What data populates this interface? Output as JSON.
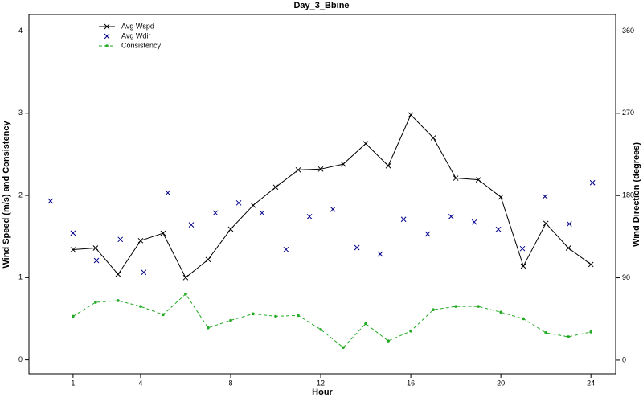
{
  "chart_data": {
    "type": "line",
    "title": "Day_3_Bbine",
    "x_label": "Hour",
    "y_label": "Wind Speed (m/s) and Consistency",
    "y2_label": "Wind Direction (degrees)",
    "xlim": [
      -0.96,
      25.1
    ],
    "xticks": [
      1,
      4,
      8,
      12,
      16,
      20,
      24
    ],
    "ylim": [
      -0.17,
      4.2
    ],
    "yticks": [
      0,
      1,
      2,
      3,
      4
    ],
    "y2lim": [
      -15,
      378
    ],
    "y2ticks": [
      0,
      90,
      180,
      270,
      360
    ],
    "legend": "top-left",
    "series": [
      {
        "name": "Avg Wspd",
        "color": "#000000",
        "marker": "x",
        "line": "solid",
        "x": [
          1,
          2,
          3,
          4,
          5,
          6,
          7,
          8,
          9,
          10,
          11,
          12,
          13,
          14,
          15,
          16,
          17,
          18,
          19,
          20,
          21,
          22,
          23,
          24
        ],
        "values": [
          1.34,
          1.36,
          1.04,
          1.45,
          1.54,
          1.0,
          1.22,
          1.59,
          1.88,
          2.1,
          2.31,
          2.32,
          2.38,
          2.63,
          2.36,
          2.98,
          2.7,
          2.21,
          2.19,
          1.98,
          1.14,
          1.66,
          1.36,
          1.16
        ]
      },
      {
        "name": "Avg Wdir",
        "color": "#00008b",
        "marker": "x",
        "line": "none",
        "axis": "y2",
        "x": [
          0,
          1,
          2.04,
          3.1,
          4.14,
          5.21,
          6.25,
          7.32,
          8.36,
          9.39,
          10.46,
          11.5,
          12.54,
          13.61,
          14.64,
          15.68,
          16.75,
          17.79,
          18.82,
          19.89,
          20.96,
          21.96,
          23.04,
          24.07
        ],
        "values": [
          174,
          139,
          109,
          132,
          96,
          183,
          148,
          161,
          172,
          161,
          121,
          157,
          165,
          123,
          116,
          154,
          138,
          157,
          151,
          143,
          122,
          179,
          149,
          194
        ]
      },
      {
        "name": "Consistency",
        "color": "#22aa22",
        "marker": "dot",
        "line": "dashed",
        "x": [
          1,
          2,
          3,
          4,
          5,
          6,
          7,
          8,
          9,
          10,
          11,
          12,
          13,
          14,
          15,
          16,
          17,
          18,
          19,
          20,
          21,
          22,
          23,
          24
        ],
        "values": [
          0.53,
          0.7,
          0.72,
          0.65,
          0.55,
          0.8,
          0.39,
          0.48,
          0.56,
          0.53,
          0.54,
          0.37,
          0.15,
          0.44,
          0.23,
          0.35,
          0.61,
          0.65,
          0.65,
          0.58,
          0.5,
          0.33,
          0.28,
          0.34
        ]
      }
    ]
  }
}
